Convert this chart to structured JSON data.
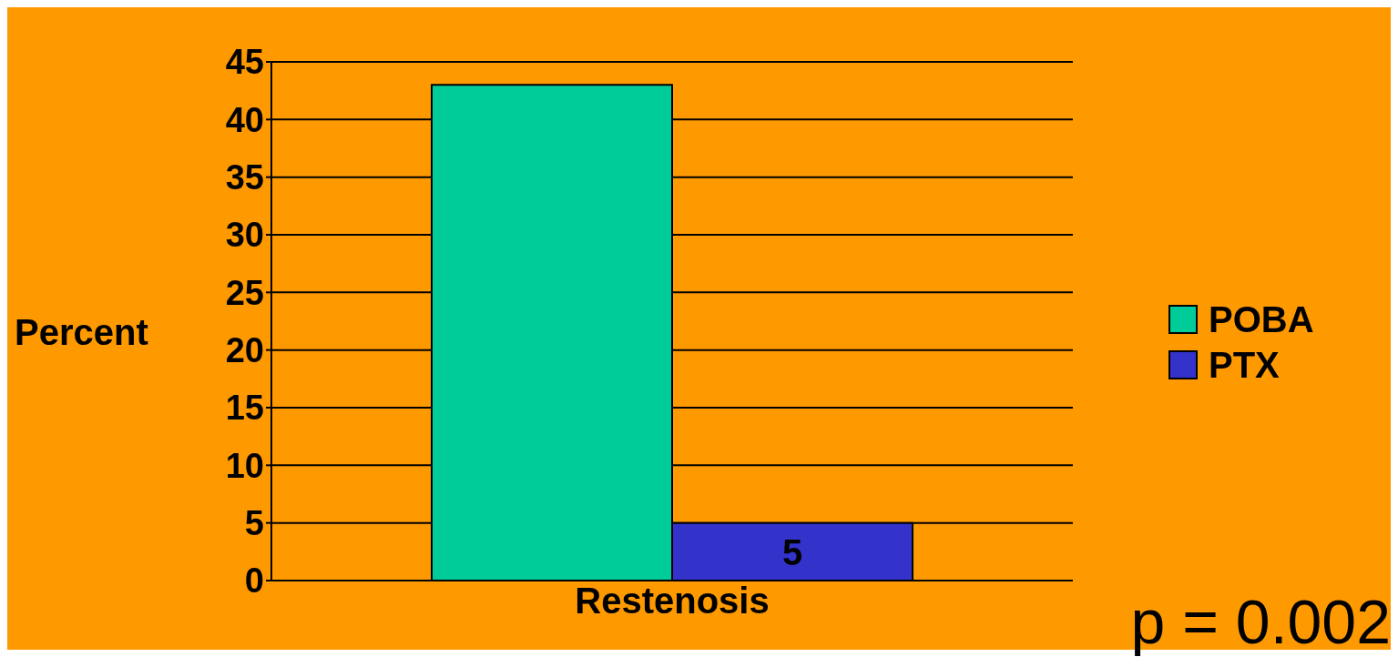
{
  "chart_data": {
    "type": "bar",
    "ylabel": "Percent",
    "categories": [
      "Restenosis"
    ],
    "series": [
      {
        "name": "POBA",
        "color": "#00cc99",
        "values": [
          43
        ]
      },
      {
        "name": "PTX",
        "color": "#3333cc",
        "values": [
          5
        ],
        "value_labels": [
          "5"
        ]
      }
    ],
    "ylim": [
      0,
      45
    ],
    "yticks": [
      0,
      5,
      10,
      15,
      20,
      25,
      30,
      35,
      40,
      45
    ],
    "grid": "y",
    "legend": "right",
    "annotations": [
      "p = 0.002"
    ]
  }
}
